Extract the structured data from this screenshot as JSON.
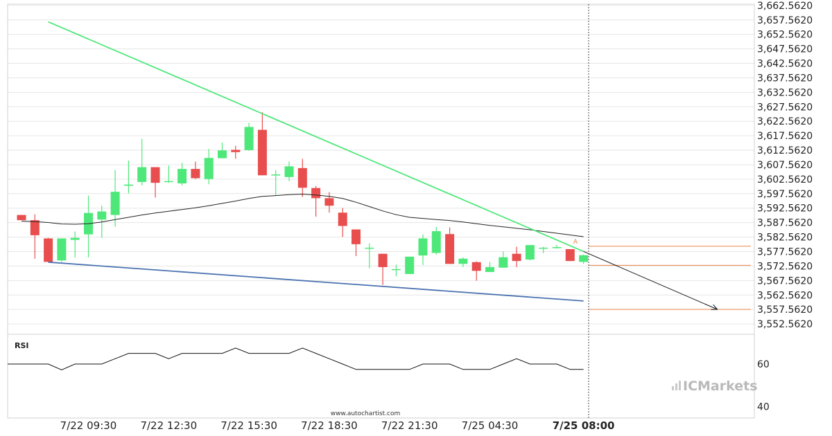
{
  "chart_data": {
    "type": "candlestick",
    "y_axis": {
      "ticks": [
        "3,662.5620",
        "3,657.5620",
        "3,652.5620",
        "3,647.5620",
        "3,642.5620",
        "3,637.5620",
        "3,632.5620",
        "3,627.5620",
        "3,622.5620",
        "3,617.5620",
        "3,612.5620",
        "3,607.5620",
        "3,602.5620",
        "3,597.5620",
        "3,592.5620",
        "3,587.5620",
        "3,582.5620",
        "3,577.5620",
        "3,572.5620",
        "3,567.5620",
        "3,562.5620",
        "3,557.5620",
        "3,552.5620"
      ],
      "range": [
        3549.0,
        3663.0
      ]
    },
    "x_axis": {
      "ticks": [
        {
          "label": "7/22 09:30",
          "index": 5,
          "bold": false
        },
        {
          "label": "7/22 12:30",
          "index": 11,
          "bold": false
        },
        {
          "label": "7/22 15:30",
          "index": 17,
          "bold": false
        },
        {
          "label": "7/22 18:30",
          "index": 23,
          "bold": false
        },
        {
          "label": "7/22 21:30",
          "index": 29,
          "bold": false
        },
        {
          "label": "7/25 04:30",
          "index": 35,
          "bold": false
        },
        {
          "label": "7/25 08:00",
          "index": 42,
          "bold": true
        }
      ]
    },
    "candles": [
      {
        "o": 3590.2,
        "h": 3590.2,
        "l": 3588.4,
        "c": 3588.4
      },
      {
        "o": 3588.4,
        "h": 3590.4,
        "l": 3575.1,
        "c": 3583.2
      },
      {
        "o": 3582.1,
        "h": 3582.3,
        "l": 3573.9,
        "c": 3574.0
      },
      {
        "o": 3574.5,
        "h": 3582.1,
        "l": 3574.0,
        "c": 3582.1
      },
      {
        "o": 3581.6,
        "h": 3584.5,
        "l": 3575.5,
        "c": 3582.3
      },
      {
        "o": 3583.5,
        "h": 3596.9,
        "l": 3575.5,
        "c": 3590.9
      },
      {
        "o": 3588.6,
        "h": 3593.4,
        "l": 3582.3,
        "c": 3591.4
      },
      {
        "o": 3590.2,
        "h": 3605.7,
        "l": 3586.1,
        "c": 3598.2
      },
      {
        "o": 3600.3,
        "h": 3609.0,
        "l": 3597.6,
        "c": 3600.7
      },
      {
        "o": 3601.6,
        "h": 3616.5,
        "l": 3600.4,
        "c": 3606.7
      },
      {
        "o": 3606.7,
        "h": 3606.7,
        "l": 3596.2,
        "c": 3601.3
      },
      {
        "o": 3601.9,
        "h": 3607.3,
        "l": 3601.3,
        "c": 3601.9
      },
      {
        "o": 3601.1,
        "h": 3608.2,
        "l": 3600.4,
        "c": 3606.1
      },
      {
        "o": 3606.1,
        "h": 3608.6,
        "l": 3602.6,
        "c": 3602.9
      },
      {
        "o": 3602.6,
        "h": 3613.0,
        "l": 3600.8,
        "c": 3609.9
      },
      {
        "o": 3609.8,
        "h": 3615.2,
        "l": 3609.8,
        "c": 3612.5
      },
      {
        "o": 3612.7,
        "h": 3614.1,
        "l": 3609.6,
        "c": 3611.9
      },
      {
        "o": 3612.6,
        "h": 3622.0,
        "l": 3612.4,
        "c": 3620.6
      },
      {
        "o": 3619.6,
        "h": 3625.7,
        "l": 3603.9,
        "c": 3603.9
      },
      {
        "o": 3604.2,
        "h": 3605.7,
        "l": 3596.8,
        "c": 3604.2
      },
      {
        "o": 3603.3,
        "h": 3608.7,
        "l": 3601.9,
        "c": 3607.0
      },
      {
        "o": 3606.4,
        "h": 3609.6,
        "l": 3596.4,
        "c": 3599.6
      },
      {
        "o": 3599.5,
        "h": 3600.2,
        "l": 3589.6,
        "c": 3596.0
      },
      {
        "o": 3596.0,
        "h": 3598.1,
        "l": 3591.0,
        "c": 3593.4
      },
      {
        "o": 3591.0,
        "h": 3592.6,
        "l": 3582.6,
        "c": 3586.4
      },
      {
        "o": 3585.2,
        "h": 3585.2,
        "l": 3576.0,
        "c": 3580.1
      },
      {
        "o": 3578.8,
        "h": 3580.4,
        "l": 3571.8,
        "c": 3578.9
      },
      {
        "o": 3576.8,
        "h": 3576.8,
        "l": 3566.0,
        "c": 3572.2
      },
      {
        "o": 3571.5,
        "h": 3573.0,
        "l": 3569.0,
        "c": 3571.5
      },
      {
        "o": 3569.8,
        "h": 3575.8,
        "l": 3569.8,
        "c": 3575.8
      },
      {
        "o": 3576.2,
        "h": 3583.5,
        "l": 3572.9,
        "c": 3582.1
      },
      {
        "o": 3577.1,
        "h": 3586.1,
        "l": 3576.5,
        "c": 3584.6
      },
      {
        "o": 3583.6,
        "h": 3585.9,
        "l": 3573.3,
        "c": 3573.3
      },
      {
        "o": 3573.3,
        "h": 3575.6,
        "l": 3572.2,
        "c": 3575.1
      },
      {
        "o": 3573.9,
        "h": 3574.2,
        "l": 3567.5,
        "c": 3570.9
      },
      {
        "o": 3570.5,
        "h": 3574.0,
        "l": 3570.5,
        "c": 3572.2
      },
      {
        "o": 3572.0,
        "h": 3577.6,
        "l": 3572.0,
        "c": 3575.6
      },
      {
        "o": 3576.8,
        "h": 3579.2,
        "l": 3572.2,
        "c": 3574.3
      },
      {
        "o": 3574.8,
        "h": 3579.8,
        "l": 3574.5,
        "c": 3579.8
      },
      {
        "o": 3578.9,
        "h": 3579.2,
        "l": 3577.0,
        "c": 3578.9
      },
      {
        "o": 3579.1,
        "h": 3579.9,
        "l": 3578.6,
        "c": 3579.1
      },
      {
        "o": 3578.4,
        "h": 3578.4,
        "l": 3574.3,
        "c": 3574.3
      },
      {
        "o": 3574.0,
        "h": 3576.5,
        "l": 3573.3,
        "c": 3576.3
      }
    ],
    "moving_average": [
      3588.1,
      3587.9,
      3587.6,
      3587.1,
      3587.0,
      3587.2,
      3587.8,
      3588.6,
      3589.4,
      3590.2,
      3590.9,
      3591.5,
      3592.1,
      3592.7,
      3593.4,
      3594.2,
      3595.0,
      3595.9,
      3596.6,
      3596.9,
      3597.2,
      3597.4,
      3597.1,
      3596.6,
      3595.9,
      3594.6,
      3593.1,
      3591.6,
      3590.3,
      3589.4,
      3589.0,
      3588.6,
      3588.3,
      3587.8,
      3587.2,
      3586.6,
      3586.1,
      3585.6,
      3585.1,
      3584.5,
      3583.9,
      3583.3,
      3582.7
    ],
    "trendlines": [
      {
        "name": "resistance",
        "color": "#4ee87a",
        "x1": 2.0,
        "y1": 3656.9,
        "x2": 42.0,
        "y2": 3577.6
      },
      {
        "name": "support",
        "color": "#4a72b0",
        "x1": 2.0,
        "y1": 3573.9,
        "x2": 42.0,
        "y2": 3560.5
      }
    ],
    "levels": [
      3579.4,
      3572.8,
      3557.6
    ],
    "projection": {
      "from": {
        "x": 42.0,
        "y": 3577.6
      },
      "to": {
        "x": 52.0,
        "y": 3557.6
      }
    },
    "rsi": {
      "label": "RSI",
      "ticks": [
        {
          "label": "60",
          "value": 60
        },
        {
          "label": "40",
          "value": 40
        }
      ],
      "range": [
        34.7,
        71.7
      ],
      "values": [
        60.0,
        60.0,
        60.0,
        57.3,
        60.0,
        60.0,
        60.0,
        62.5,
        65.0,
        65.0,
        65.0,
        62.5,
        65.0,
        65.0,
        65.0,
        65.0,
        67.5,
        65.0,
        65.0,
        65.0,
        65.0,
        67.5,
        65.0,
        62.5,
        60.0,
        57.5,
        57.5,
        57.5,
        57.5,
        57.5,
        60.0,
        60.0,
        60.0,
        57.5,
        57.5,
        57.5,
        60.0,
        62.5,
        60.0,
        60.0,
        60.0,
        57.5,
        57.5
      ]
    },
    "colors": {
      "up": "#4ee87a",
      "down": "#e84e4e",
      "level": "#e8834a",
      "ma": "#222222",
      "grid": "#e6e6e6"
    },
    "marker_label": "A",
    "grid": true
  },
  "footer": {
    "watermark": "www.autochartist.com",
    "brand_prefix": "IC",
    "brand_name": "Markets"
  }
}
